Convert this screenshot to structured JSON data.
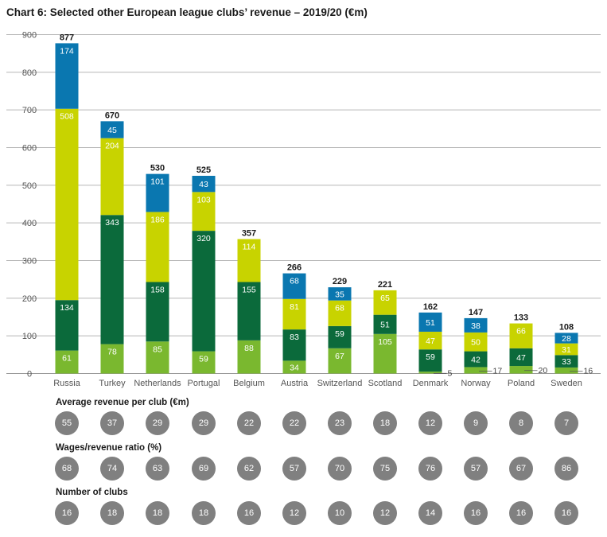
{
  "title": "Chart 6: Selected other European league clubs’ revenue – 2019/20 (€m)",
  "colors": {
    "light_green": "#7ab82f",
    "dark_green": "#0b6a3b",
    "yellow": "#c8d300",
    "blue": "#0a77b0",
    "grid": "#b7b7b7",
    "circle": "#808080"
  },
  "chart_data": {
    "type": "bar",
    "stacked": true,
    "title": "Chart 6: Selected other European league clubs’ revenue – 2019/20 (€m)",
    "xlabel": "",
    "ylabel": "",
    "ylim": [
      0,
      900
    ],
    "yticks": [
      "0",
      "100",
      "200",
      "300",
      "400",
      "500",
      "600",
      "700",
      "800",
      "900"
    ],
    "grid": true,
    "categories": [
      "Russia",
      "Turkey",
      "Netherlands",
      "Portugal",
      "Belgium",
      "Austria",
      "Switzerland",
      "Scotland",
      "Denmark",
      "Norway",
      "Poland",
      "Sweden"
    ],
    "series": [
      {
        "color": "#7ab82f",
        "values": [
          61,
          78,
          85,
          59,
          88,
          34,
          67,
          105,
          5,
          17,
          20,
          16
        ]
      },
      {
        "color": "#0b6a3b",
        "values": [
          134,
          343,
          158,
          320,
          155,
          83,
          59,
          51,
          59,
          42,
          47,
          33
        ]
      },
      {
        "color": "#c8d300",
        "values": [
          508,
          204,
          186,
          103,
          114,
          81,
          68,
          65,
          47,
          50,
          66,
          31
        ]
      },
      {
        "color": "#0a77b0",
        "values": [
          174,
          45,
          101,
          43,
          0,
          68,
          35,
          0,
          51,
          38,
          0,
          28
        ]
      }
    ],
    "totals": [
      877,
      670,
      530,
      525,
      357,
      266,
      229,
      221,
      162,
      147,
      133,
      108
    ]
  },
  "rows": [
    {
      "title": "Average revenue per club (€m)",
      "values": [
        "55",
        "37",
        "29",
        "29",
        "22",
        "22",
        "23",
        "18",
        "12",
        "9",
        "8",
        "7"
      ]
    },
    {
      "title": "Wages/revenue ratio (%)",
      "values": [
        "68",
        "74",
        "63",
        "69",
        "62",
        "57",
        "70",
        "75",
        "76",
        "57",
        "67",
        "86"
      ]
    },
    {
      "title": "Number of clubs",
      "values": [
        "16",
        "18",
        "18",
        "18",
        "16",
        "12",
        "10",
        "12",
        "14",
        "16",
        "16",
        "16"
      ]
    }
  ]
}
